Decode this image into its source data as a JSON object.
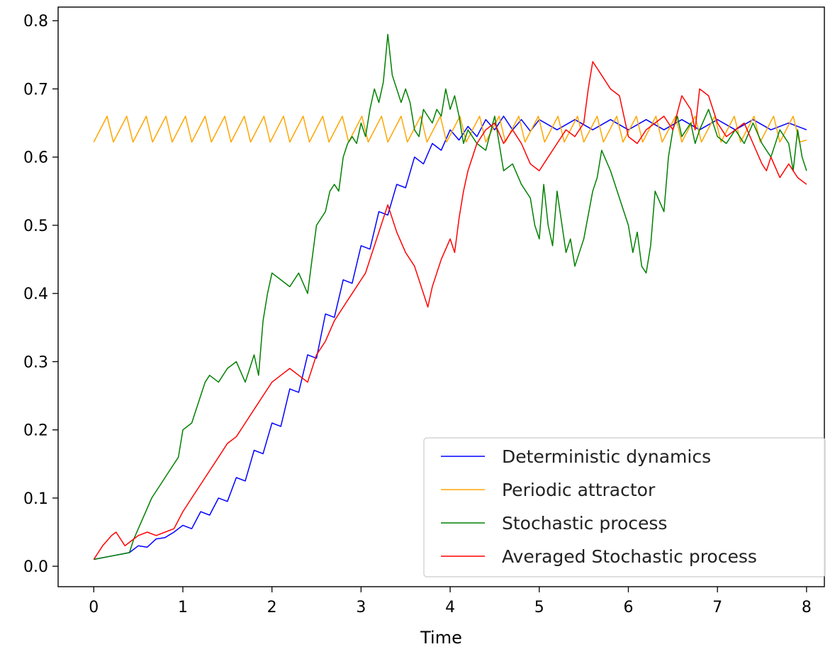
{
  "chart_data": {
    "type": "line",
    "title": "",
    "xlabel": "Time",
    "ylabel": "",
    "xlim": [
      -0.4,
      8.2
    ],
    "ylim": [
      -0.03,
      0.82
    ],
    "xticks": [
      0,
      1,
      2,
      3,
      4,
      5,
      6,
      7,
      8
    ],
    "xtick_labels": [
      "0",
      "1",
      "2",
      "3",
      "4",
      "5",
      "6",
      "7",
      "8"
    ],
    "yticks": [
      0.0,
      0.1,
      0.2,
      0.3,
      0.4,
      0.5,
      0.6,
      0.7,
      0.8
    ],
    "ytick_labels": [
      "0.0",
      "0.1",
      "0.2",
      "0.3",
      "0.4",
      "0.5",
      "0.6",
      "0.7",
      "0.8"
    ],
    "grid": false,
    "legend_position": "lower-right",
    "series": [
      {
        "name": "Deterministic dynamics",
        "color": "#0000ff",
        "x": [
          0,
          0.2,
          0.4,
          0.5,
          0.6,
          0.7,
          0.8,
          0.9,
          1.0,
          1.1,
          1.2,
          1.3,
          1.4,
          1.5,
          1.6,
          1.7,
          1.8,
          1.9,
          2.0,
          2.1,
          2.2,
          2.3,
          2.4,
          2.5,
          2.6,
          2.7,
          2.8,
          2.9,
          3.0,
          3.1,
          3.2,
          3.3,
          3.4,
          3.5,
          3.6,
          3.7,
          3.8,
          3.9,
          4.0,
          4.1,
          4.2,
          4.3,
          4.4,
          4.5,
          4.6,
          4.7,
          4.8,
          4.9,
          5.0,
          5.2,
          5.4,
          5.6,
          5.8,
          6.0,
          6.2,
          6.4,
          6.6,
          6.8,
          7.0,
          7.2,
          7.4,
          7.6,
          7.8,
          8.0
        ],
        "y": [
          0.01,
          0.015,
          0.02,
          0.03,
          0.028,
          0.04,
          0.042,
          0.05,
          0.06,
          0.055,
          0.08,
          0.075,
          0.1,
          0.095,
          0.13,
          0.125,
          0.17,
          0.165,
          0.21,
          0.205,
          0.26,
          0.255,
          0.31,
          0.305,
          0.37,
          0.365,
          0.42,
          0.415,
          0.47,
          0.465,
          0.52,
          0.515,
          0.56,
          0.555,
          0.6,
          0.59,
          0.62,
          0.61,
          0.64,
          0.625,
          0.645,
          0.63,
          0.655,
          0.64,
          0.66,
          0.64,
          0.655,
          0.638,
          0.655,
          0.64,
          0.655,
          0.64,
          0.655,
          0.64,
          0.655,
          0.64,
          0.655,
          0.64,
          0.655,
          0.64,
          0.655,
          0.64,
          0.65,
          0.64
        ]
      },
      {
        "name": "Periodic attractor",
        "color": "#ffa500",
        "x": [
          0,
          0.15,
          0.22,
          0.37,
          0.44,
          0.59,
          0.66,
          0.81,
          0.88,
          1.03,
          1.1,
          1.25,
          1.32,
          1.47,
          1.54,
          1.69,
          1.76,
          1.91,
          1.98,
          2.13,
          2.2,
          2.35,
          2.42,
          2.57,
          2.64,
          2.79,
          2.86,
          3.01,
          3.08,
          3.23,
          3.3,
          3.45,
          3.52,
          3.67,
          3.74,
          3.89,
          3.96,
          4.11,
          4.18,
          4.33,
          4.4,
          4.55,
          4.62,
          4.77,
          4.84,
          4.99,
          5.06,
          5.21,
          5.28,
          5.43,
          5.5,
          5.65,
          5.72,
          5.87,
          5.94,
          6.09,
          6.16,
          6.31,
          6.38,
          6.53,
          6.6,
          6.75,
          6.82,
          6.97,
          7.04,
          7.19,
          7.26,
          7.41,
          7.48,
          7.63,
          7.7,
          7.85,
          7.92,
          8.0
        ],
        "y": [
          0.622,
          0.66,
          0.622,
          0.66,
          0.622,
          0.66,
          0.622,
          0.66,
          0.622,
          0.66,
          0.622,
          0.66,
          0.622,
          0.66,
          0.622,
          0.66,
          0.622,
          0.66,
          0.622,
          0.66,
          0.622,
          0.66,
          0.622,
          0.66,
          0.622,
          0.66,
          0.622,
          0.66,
          0.622,
          0.66,
          0.622,
          0.66,
          0.622,
          0.66,
          0.622,
          0.66,
          0.622,
          0.66,
          0.622,
          0.66,
          0.622,
          0.66,
          0.622,
          0.66,
          0.622,
          0.66,
          0.622,
          0.66,
          0.622,
          0.66,
          0.622,
          0.66,
          0.622,
          0.66,
          0.622,
          0.66,
          0.622,
          0.66,
          0.622,
          0.66,
          0.622,
          0.66,
          0.622,
          0.66,
          0.622,
          0.66,
          0.622,
          0.66,
          0.622,
          0.66,
          0.622,
          0.66,
          0.622,
          0.625
        ]
      },
      {
        "name": "Stochastic process",
        "color": "#008000",
        "x": [
          0,
          0.2,
          0.4,
          0.45,
          0.55,
          0.65,
          0.75,
          0.85,
          0.95,
          1.0,
          1.1,
          1.2,
          1.25,
          1.3,
          1.4,
          1.5,
          1.6,
          1.7,
          1.75,
          1.8,
          1.85,
          1.9,
          1.95,
          2.0,
          2.1,
          2.2,
          2.3,
          2.4,
          2.45,
          2.5,
          2.6,
          2.65,
          2.7,
          2.75,
          2.8,
          2.85,
          2.9,
          2.95,
          3.0,
          3.05,
          3.1,
          3.15,
          3.2,
          3.25,
          3.3,
          3.35,
          3.4,
          3.45,
          3.5,
          3.55,
          3.6,
          3.65,
          3.7,
          3.75,
          3.8,
          3.85,
          3.9,
          3.95,
          4.0,
          4.05,
          4.1,
          4.15,
          4.2,
          4.3,
          4.4,
          4.5,
          4.6,
          4.7,
          4.8,
          4.9,
          4.95,
          5.0,
          5.05,
          5.1,
          5.15,
          5.2,
          5.3,
          5.35,
          5.4,
          5.5,
          5.6,
          5.65,
          5.7,
          5.8,
          5.9,
          6.0,
          6.05,
          6.1,
          6.15,
          6.2,
          6.25,
          6.3,
          6.4,
          6.45,
          6.5,
          6.55,
          6.6,
          6.7,
          6.75,
          6.8,
          6.9,
          7.0,
          7.1,
          7.2,
          7.3,
          7.4,
          7.5,
          7.6,
          7.7,
          7.8,
          7.85,
          7.9,
          7.95,
          8.0
        ],
        "y": [
          0.01,
          0.015,
          0.02,
          0.04,
          0.07,
          0.1,
          0.12,
          0.14,
          0.16,
          0.2,
          0.21,
          0.25,
          0.27,
          0.28,
          0.27,
          0.29,
          0.3,
          0.27,
          0.29,
          0.31,
          0.28,
          0.36,
          0.4,
          0.43,
          0.42,
          0.41,
          0.43,
          0.4,
          0.45,
          0.5,
          0.52,
          0.55,
          0.56,
          0.55,
          0.6,
          0.62,
          0.63,
          0.62,
          0.65,
          0.63,
          0.67,
          0.7,
          0.68,
          0.71,
          0.78,
          0.72,
          0.7,
          0.68,
          0.7,
          0.68,
          0.64,
          0.63,
          0.67,
          0.66,
          0.65,
          0.67,
          0.66,
          0.7,
          0.67,
          0.69,
          0.66,
          0.62,
          0.64,
          0.62,
          0.61,
          0.66,
          0.58,
          0.59,
          0.56,
          0.54,
          0.5,
          0.48,
          0.56,
          0.5,
          0.47,
          0.55,
          0.46,
          0.48,
          0.44,
          0.48,
          0.55,
          0.57,
          0.61,
          0.58,
          0.54,
          0.5,
          0.46,
          0.49,
          0.44,
          0.43,
          0.47,
          0.55,
          0.52,
          0.6,
          0.64,
          0.66,
          0.63,
          0.65,
          0.62,
          0.64,
          0.67,
          0.63,
          0.62,
          0.64,
          0.62,
          0.65,
          0.62,
          0.6,
          0.64,
          0.62,
          0.58,
          0.64,
          0.6,
          0.58
        ]
      },
      {
        "name": "Averaged Stochastic process",
        "color": "#ff0000",
        "x": [
          0,
          0.1,
          0.2,
          0.25,
          0.3,
          0.35,
          0.4,
          0.45,
          0.5,
          0.6,
          0.7,
          0.8,
          0.9,
          1.0,
          1.1,
          1.2,
          1.3,
          1.4,
          1.5,
          1.6,
          1.7,
          1.8,
          1.9,
          2.0,
          2.1,
          2.2,
          2.3,
          2.4,
          2.5,
          2.6,
          2.7,
          2.8,
          2.9,
          3.0,
          3.05,
          3.1,
          3.2,
          3.25,
          3.3,
          3.35,
          3.4,
          3.5,
          3.6,
          3.7,
          3.75,
          3.8,
          3.85,
          3.9,
          4.0,
          4.05,
          4.1,
          4.15,
          4.2,
          4.3,
          4.4,
          4.5,
          4.6,
          4.7,
          4.8,
          4.9,
          5.0,
          5.1,
          5.2,
          5.3,
          5.4,
          5.5,
          5.55,
          5.6,
          5.7,
          5.8,
          5.9,
          6.0,
          6.1,
          6.2,
          6.3,
          6.4,
          6.5,
          6.6,
          6.7,
          6.75,
          6.8,
          6.9,
          7.0,
          7.1,
          7.2,
          7.3,
          7.4,
          7.5,
          7.55,
          7.6,
          7.7,
          7.8,
          7.9,
          8.0
        ],
        "y": [
          0.01,
          0.03,
          0.045,
          0.05,
          0.04,
          0.03,
          0.035,
          0.04,
          0.045,
          0.05,
          0.045,
          0.05,
          0.055,
          0.08,
          0.1,
          0.12,
          0.14,
          0.16,
          0.18,
          0.19,
          0.21,
          0.23,
          0.25,
          0.27,
          0.28,
          0.29,
          0.28,
          0.27,
          0.31,
          0.33,
          0.36,
          0.38,
          0.4,
          0.42,
          0.43,
          0.45,
          0.49,
          0.51,
          0.53,
          0.51,
          0.49,
          0.46,
          0.44,
          0.4,
          0.38,
          0.41,
          0.43,
          0.45,
          0.48,
          0.46,
          0.51,
          0.55,
          0.58,
          0.62,
          0.64,
          0.65,
          0.62,
          0.64,
          0.62,
          0.59,
          0.58,
          0.6,
          0.62,
          0.64,
          0.63,
          0.65,
          0.7,
          0.74,
          0.72,
          0.7,
          0.69,
          0.63,
          0.62,
          0.64,
          0.65,
          0.66,
          0.64,
          0.69,
          0.67,
          0.64,
          0.7,
          0.69,
          0.65,
          0.63,
          0.64,
          0.65,
          0.62,
          0.59,
          0.58,
          0.6,
          0.57,
          0.59,
          0.57,
          0.56
        ]
      }
    ]
  }
}
